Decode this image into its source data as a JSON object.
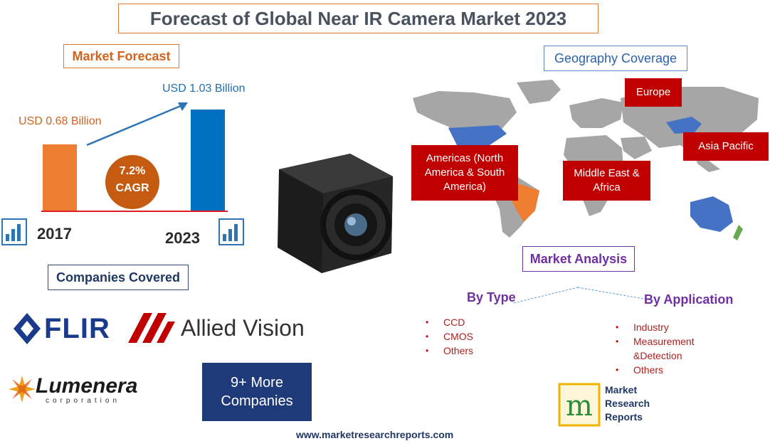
{
  "title": "Forecast of Global Near IR Camera Market 2023",
  "market_forecast": {
    "heading": "Market Forecast",
    "value_2017": "USD 0.68 Billion",
    "value_2023": "USD 1.03 Billion",
    "year_2017": "2017",
    "year_2023": "2023",
    "cagr_value": "7.2%",
    "cagr_label": "CAGR",
    "colors": {
      "bar_2017": "#ed7d31",
      "bar_2023": "#0070c0",
      "cagr_circle": "#c55a11",
      "baseline": "#e02020"
    }
  },
  "chart_data": {
    "type": "bar",
    "categories": [
      "2017",
      "2023"
    ],
    "values": [
      0.68,
      1.03
    ]
  },
  "geography": {
    "heading": "Geography Coverage",
    "regions": [
      "Europe",
      "Asia Pacific",
      "Americas (North America & South America)",
      "Middle East & Africa"
    ]
  },
  "market_analysis": {
    "heading": "Market Analysis",
    "by_type": {
      "heading": "By Type",
      "items": [
        "CCD",
        "CMOS",
        "Others"
      ]
    },
    "by_application": {
      "heading": "By Application",
      "items": [
        "Industry",
        "Measurement &Detection",
        "Others"
      ]
    }
  },
  "companies": {
    "heading": "Companies Covered",
    "flir": "FLIR",
    "allied": "Allied Vision",
    "lumenera": "Lumenera",
    "lumenera_sub": "corporation",
    "more": "9+ More Companies"
  },
  "brand": {
    "line1": "Market",
    "line2": "Research",
    "line3": "Reports"
  },
  "website": "www.marketresearchreports.com",
  "icons": [
    "bar-chart-icon",
    "camera-icon",
    "world-map-icon",
    "flir-logo-icon",
    "allied-logo-icon",
    "lumenera-logo-icon",
    "mrr-logo-icon"
  ]
}
